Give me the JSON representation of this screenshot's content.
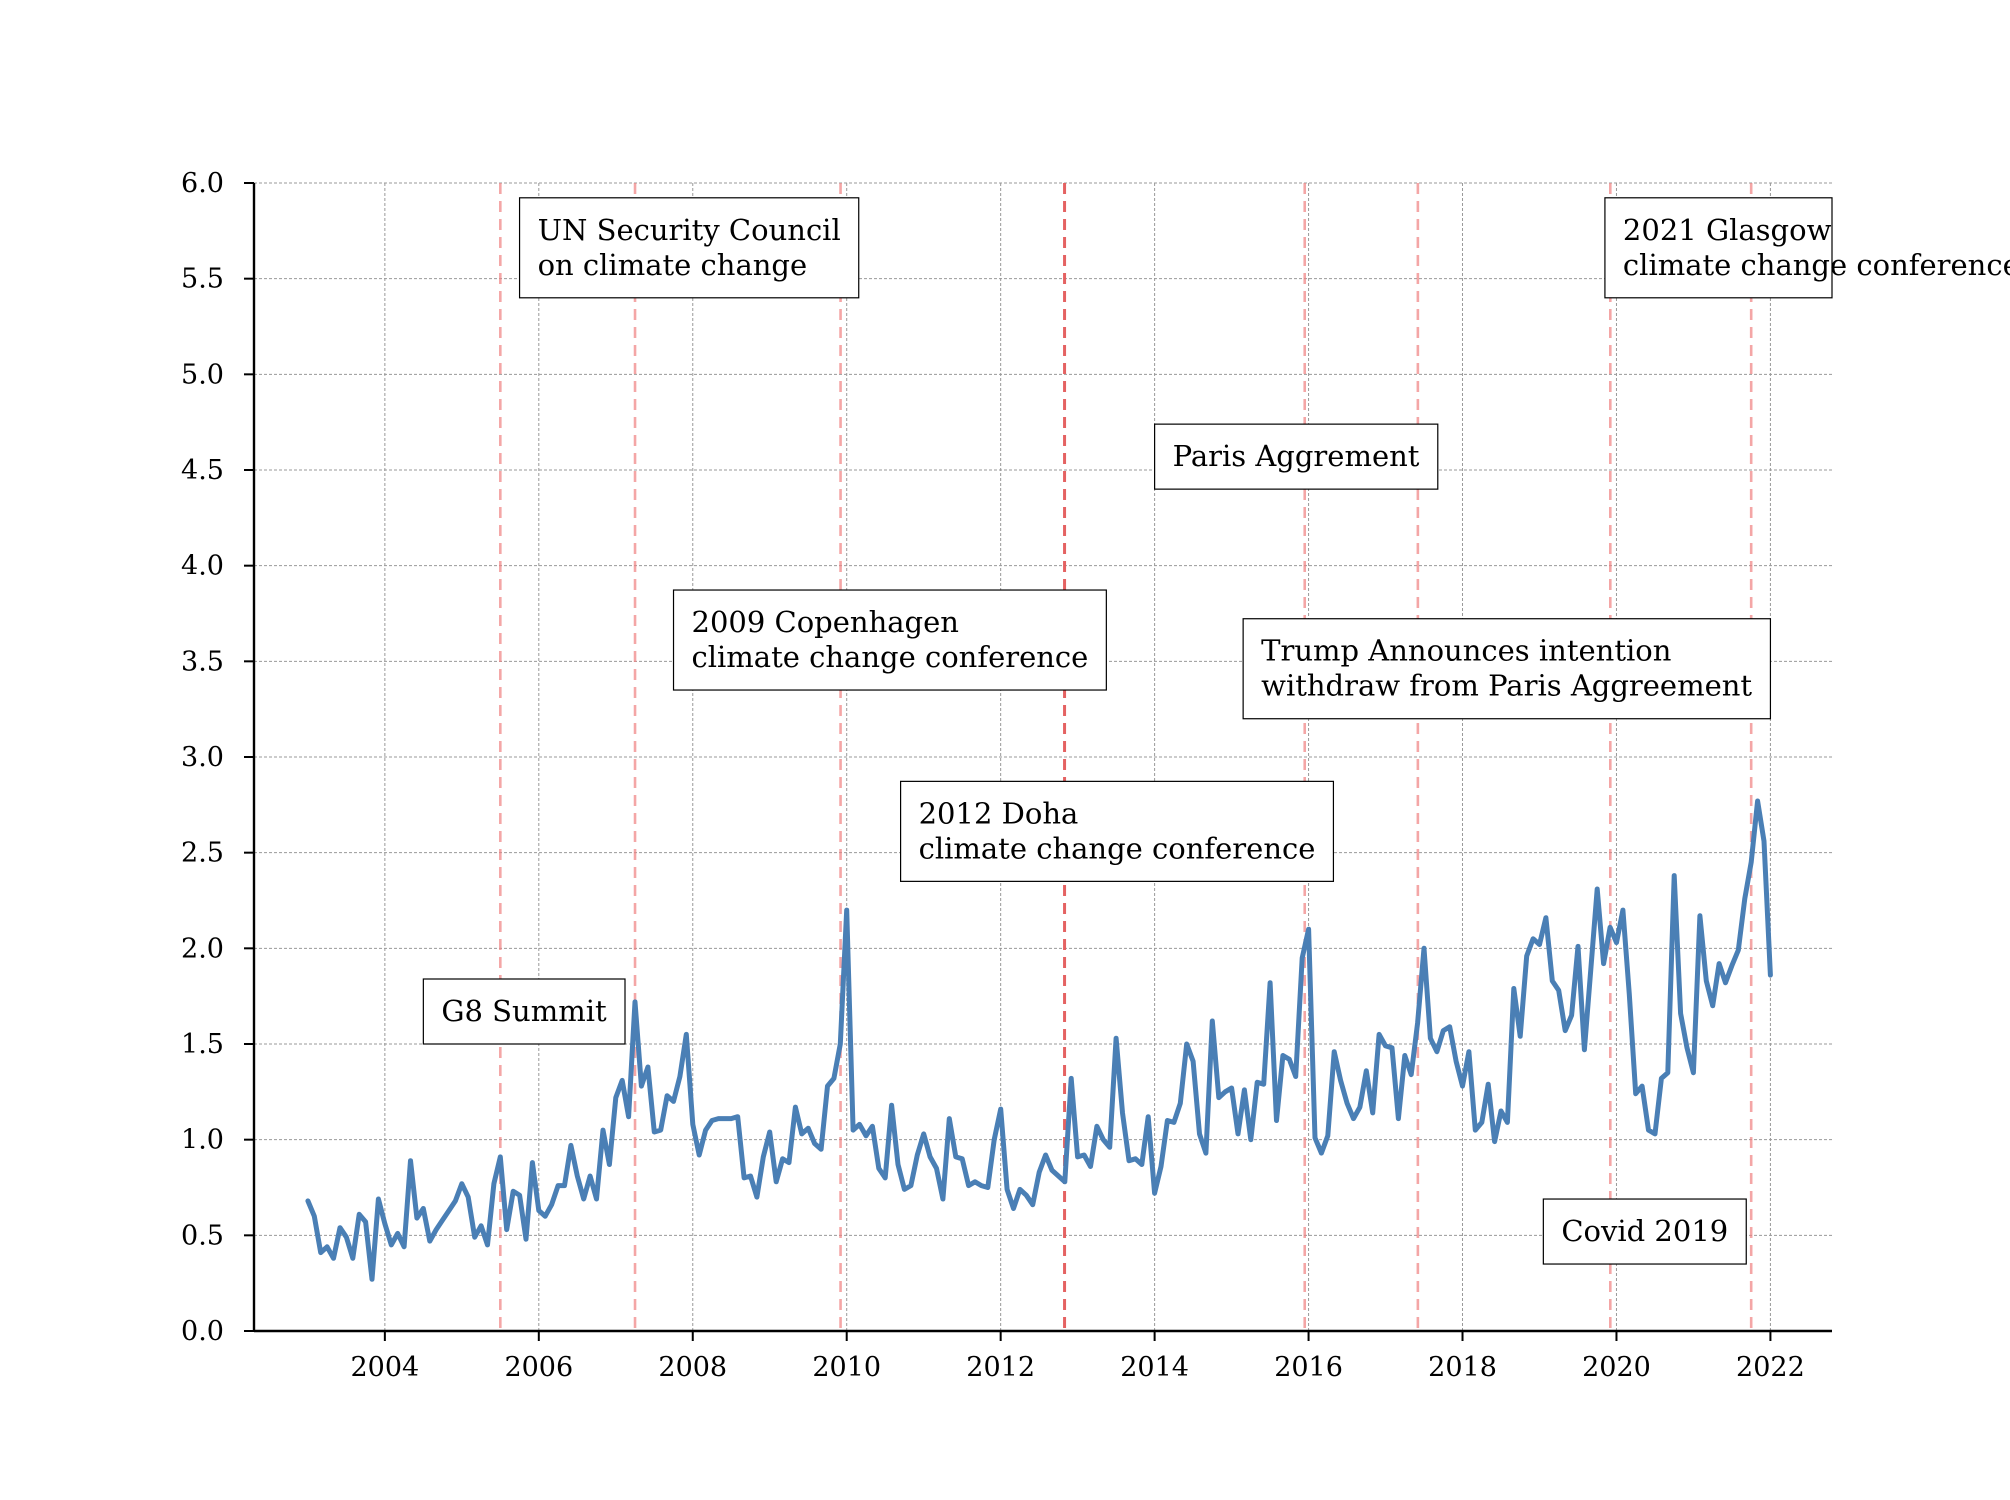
{
  "chart_data": {
    "type": "line",
    "title": "",
    "xlabel": "",
    "ylabel": "",
    "xlim": [
      2002.3,
      2022.8
    ],
    "ylim": [
      0.0,
      6.0
    ],
    "grid": true,
    "x_ticks": [
      2004,
      2006,
      2008,
      2010,
      2012,
      2014,
      2016,
      2018,
      2020,
      2022
    ],
    "x_tick_labels": [
      "2004",
      "2006",
      "2008",
      "2010",
      "2012",
      "2014",
      "2016",
      "2018",
      "2020",
      "2022"
    ],
    "y_ticks": [
      0.0,
      0.5,
      1.0,
      1.5,
      2.0,
      2.5,
      3.0,
      3.5,
      4.0,
      4.5,
      5.0,
      5.5,
      6.0
    ],
    "y_tick_labels": [
      "0.0",
      "0.5",
      "1.0",
      "1.5",
      "2.0",
      "2.5",
      "3.0",
      "3.5",
      "4.0",
      "4.5",
      "5.0",
      "5.5",
      "6.0"
    ],
    "line_color": "#4a7fb5",
    "event_line_color": "#f08080",
    "series": [
      {
        "x_start": 2003.0,
        "x_step_months": 1,
        "values": [
          0.68,
          0.6,
          0.41,
          0.44,
          0.38,
          0.54,
          0.49,
          0.38,
          0.61,
          0.57,
          0.27,
          0.69,
          0.56,
          0.45,
          0.51,
          0.44,
          0.89,
          0.59,
          0.64,
          0.47,
          0.53,
          0.58,
          0.63,
          0.68,
          0.77,
          0.7,
          0.49,
          0.55,
          0.45,
          0.77,
          0.91,
          0.53,
          0.73,
          0.71,
          0.48,
          0.88,
          0.63,
          0.6,
          0.66,
          0.76,
          0.76,
          0.97,
          0.81,
          0.69,
          0.81,
          0.69,
          1.05,
          0.87,
          1.22,
          1.31,
          1.12,
          1.72,
          1.28,
          1.38,
          1.04,
          1.05,
          1.23,
          1.2,
          1.33,
          1.55,
          1.08,
          0.92,
          1.05,
          1.1,
          1.11,
          1.11,
          1.11,
          1.12,
          0.8,
          0.81,
          0.7,
          0.91,
          1.04,
          0.78,
          0.9,
          0.88,
          1.17,
          1.03,
          1.06,
          0.98,
          0.95,
          1.28,
          1.32,
          1.5,
          2.2,
          1.05,
          1.08,
          1.02,
          1.07,
          0.85,
          0.8,
          1.18,
          0.87,
          0.74,
          0.76,
          0.92,
          1.03,
          0.91,
          0.85,
          0.69,
          1.11,
          0.91,
          0.9,
          0.76,
          0.78,
          0.76,
          0.75,
          1.0,
          1.16,
          0.74,
          0.64,
          0.74,
          0.71,
          0.66,
          0.83,
          0.92,
          0.84,
          0.81,
          0.78,
          1.32,
          0.91,
          0.92,
          0.86,
          1.07,
          1.0,
          0.96,
          1.53,
          1.14,
          0.89,
          0.9,
          0.87,
          1.12,
          0.72,
          0.86,
          1.1,
          1.09,
          1.19,
          1.5,
          1.41,
          1.03,
          0.93,
          1.62,
          1.22,
          1.25,
          1.27,
          1.03,
          1.26,
          1.0,
          1.3,
          1.29,
          1.82,
          1.1,
          1.44,
          1.42,
          1.33,
          1.95,
          2.1,
          1.01,
          0.93,
          1.02,
          1.46,
          1.31,
          1.19,
          1.11,
          1.17,
          1.36,
          1.14,
          1.55,
          1.49,
          1.48,
          1.11,
          1.44,
          1.34,
          1.61,
          2.0,
          1.53,
          1.46,
          1.57,
          1.59,
          1.41,
          1.28,
          1.46,
          1.05,
          1.09,
          1.29,
          0.99,
          1.15,
          1.09,
          1.79,
          1.54,
          1.96,
          2.05,
          2.02,
          2.16,
          1.83,
          1.78,
          1.57,
          1.65,
          2.01,
          1.47,
          1.89,
          2.31,
          1.92,
          2.11,
          2.03,
          2.2,
          1.76,
          1.24,
          1.28,
          1.05,
          1.03,
          1.32,
          1.35,
          2.38,
          1.66,
          1.48,
          1.35,
          2.17,
          1.83,
          1.7,
          1.92,
          1.82,
          1.91,
          1.99,
          2.26,
          2.45,
          2.77,
          2.56,
          1.86
        ]
      }
    ],
    "event_lines": [
      {
        "x": 2005.5,
        "style": "light"
      },
      {
        "x": 2007.25,
        "style": "light"
      },
      {
        "x": 2009.92,
        "style": "light"
      },
      {
        "x": 2012.83,
        "style": "dark"
      },
      {
        "x": 2015.95,
        "style": "light"
      },
      {
        "x": 2017.42,
        "style": "light"
      },
      {
        "x": 2019.92,
        "style": "light"
      },
      {
        "x": 2021.75,
        "style": "light"
      }
    ],
    "annotations": [
      {
        "id": "g8-summit",
        "lines": [
          "G8 Summit"
        ],
        "x": 2004.5,
        "y": 1.5
      },
      {
        "id": "un-security-council",
        "lines": [
          "UN Security Council",
          "on climate change"
        ],
        "x": 2005.75,
        "y": 5.4
      },
      {
        "id": "copenhagen",
        "lines": [
          "2009 Copenhagen",
          "climate change conference"
        ],
        "x": 2007.75,
        "y": 3.35
      },
      {
        "id": "doha",
        "lines": [
          "2012 Doha",
          "climate change conference"
        ],
        "x": 2010.7,
        "y": 2.35
      },
      {
        "id": "paris",
        "lines": [
          "Paris Aggrement"
        ],
        "x": 2014.0,
        "y": 4.4
      },
      {
        "id": "trump",
        "lines": [
          "Trump Announces intention",
          "withdraw from Paris Aggreement"
        ],
        "x": 2015.15,
        "y": 3.2
      },
      {
        "id": "glasgow",
        "lines": [
          "2021 Glasgow",
          "climate change conference"
        ],
        "x": 2019.85,
        "y": 5.4
      },
      {
        "id": "covid",
        "lines": [
          "Covid 2019"
        ],
        "x": 2019.05,
        "y": 0.35
      }
    ]
  }
}
